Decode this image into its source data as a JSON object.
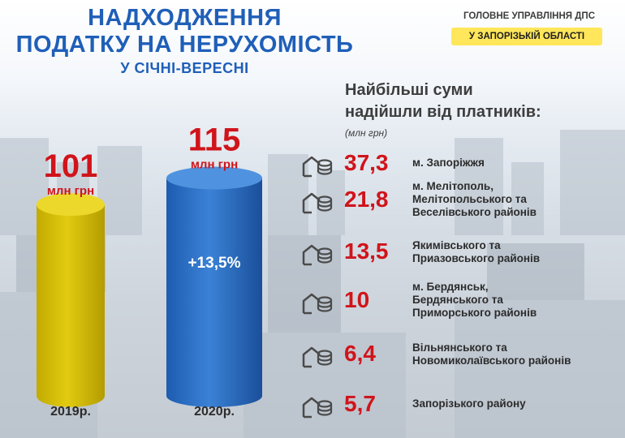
{
  "header": {
    "title_line1": "НАДХОДЖЕННЯ",
    "title_line2": "ПОДАТКУ НА НЕРУХОМІСТЬ",
    "title_line3": "У СІЧНІ-ВЕРЕСНІ"
  },
  "org": {
    "line1": "ГОЛОВНЕ УПРАВЛІННЯ ДПС",
    "line2": "У ЗАПОРІЗЬКІЙ ОБЛАСТІ"
  },
  "chart_data": {
    "type": "bar",
    "categories": [
      "2019р.",
      "2020р."
    ],
    "values": [
      101,
      115
    ],
    "value_labels": [
      "101",
      "115"
    ],
    "unit": "млн грн",
    "growth_label": "+13,5%",
    "colors": [
      "#d8c000",
      "#2a6fc2"
    ]
  },
  "right": {
    "heading_line1": "Найбільші суми",
    "heading_line2": "надійшли від платників:",
    "unit": "(млн грн)",
    "rows": [
      {
        "value": "37,3",
        "label1": "м. Запоріжжя",
        "label2": "",
        "label3": ""
      },
      {
        "value": "21,8",
        "label1": "м. Мелітополь,",
        "label2": "Мелітопольського та",
        "label3": "Веселівського районів"
      },
      {
        "value": "13,5",
        "label1": "Якимівського та",
        "label2": "Приазовського районів",
        "label3": ""
      },
      {
        "value": "10",
        "label1": "м. Бердянськ,",
        "label2": "Бердянського та",
        "label3": "Приморського районів"
      },
      {
        "value": "6,4",
        "label1": "Вільнянського та",
        "label2": "Новомиколаївського районів",
        "label3": ""
      },
      {
        "value": "5,7",
        "label1": "Запорізького району",
        "label2": "",
        "label3": ""
      }
    ],
    "icon": "house-coins-icon"
  }
}
